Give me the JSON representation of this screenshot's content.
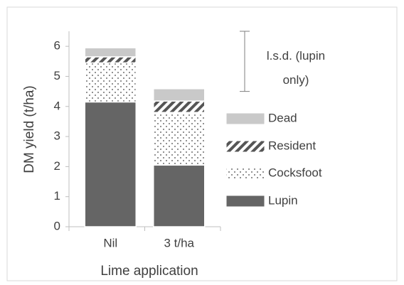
{
  "chart_data": {
    "type": "stacked_bar",
    "x_label": "Lime application",
    "y_label": "DM yield (t/ha)",
    "categories": [
      "Nil",
      "3 t/ha"
    ],
    "series": [
      {
        "name": "Lupin",
        "color": "#656565",
        "pattern": "solid",
        "values": [
          4.15,
          2.05
        ]
      },
      {
        "name": "Cocksfoot",
        "color": "#ffffff",
        "pattern": "dots",
        "values": [
          1.3,
          1.75
        ]
      },
      {
        "name": "Resident",
        "color": "#ffffff",
        "pattern": "hatch",
        "values": [
          0.2,
          0.38
        ]
      },
      {
        "name": "Dead",
        "color": "#c9c9c9",
        "pattern": "solid",
        "values": [
          0.3,
          0.41
        ]
      }
    ],
    "ylim": [
      0,
      6.5
    ],
    "yticks": [
      0,
      1,
      2,
      3,
      4,
      5,
      6
    ],
    "lsd": {
      "label": "l.s.d. (lupin only)",
      "range": [
        4.5,
        6.5
      ]
    }
  }
}
